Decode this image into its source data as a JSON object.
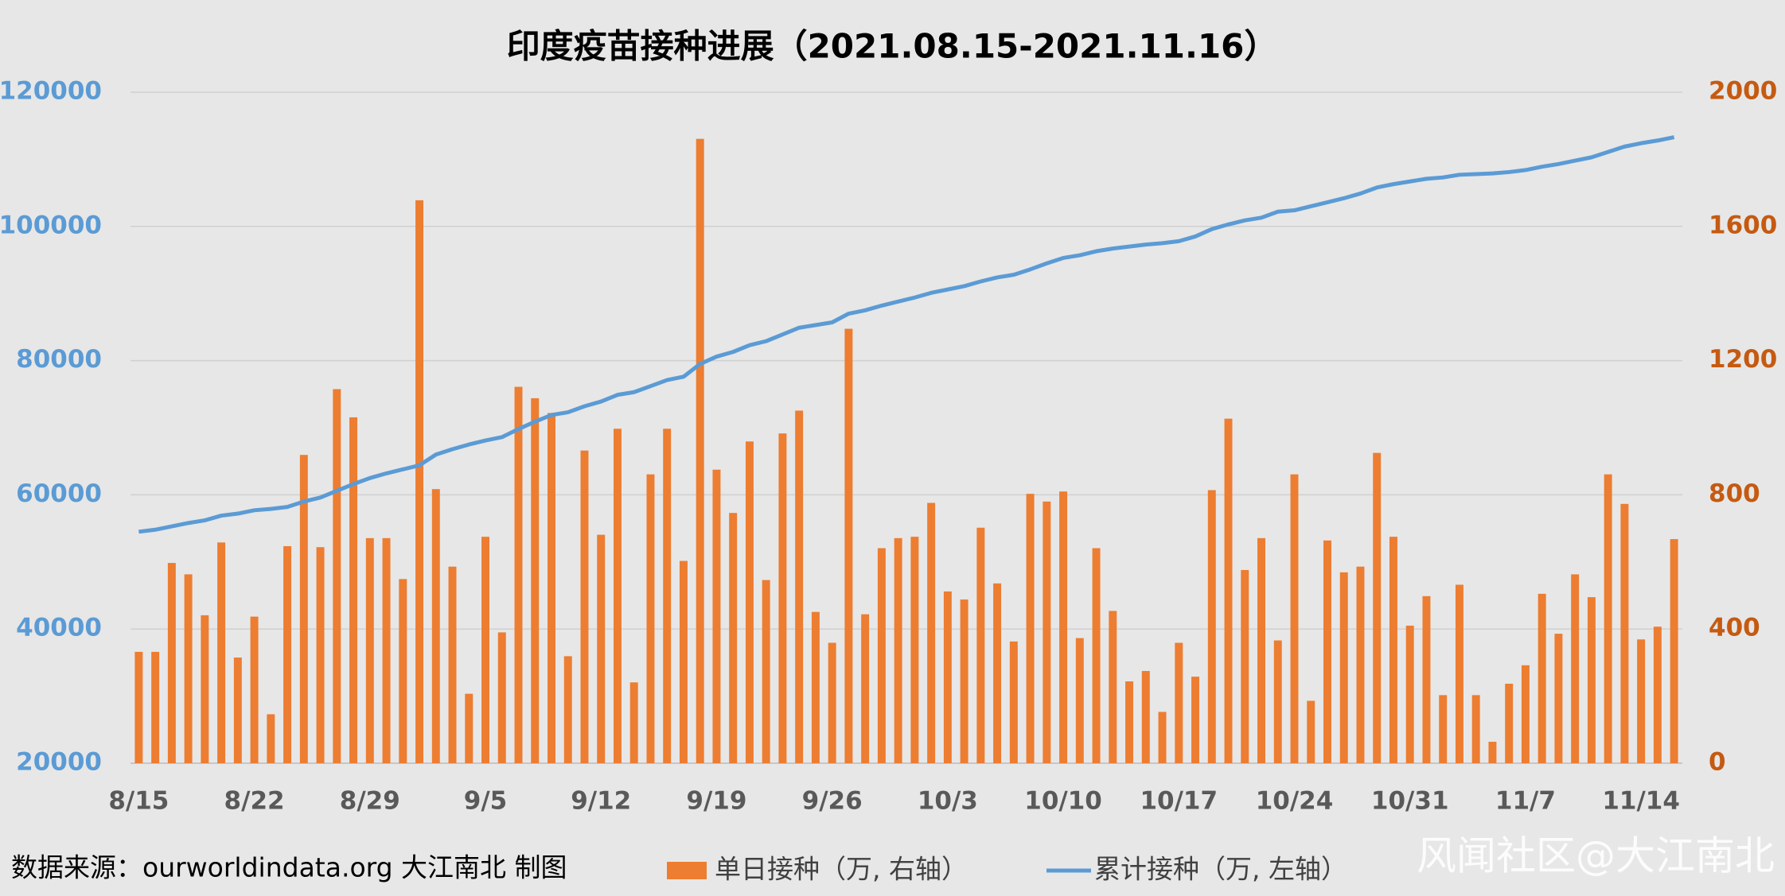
{
  "chart_data": {
    "type": "bar-line",
    "title": "印度疫苗接种进展（2021.08.15-2021.11.16）",
    "source": "数据来源：ourworldindata.org 大江南北 制图",
    "watermark": "风闻社区@大江南北",
    "categories": [
      "8/15",
      null,
      null,
      null,
      null,
      null,
      null,
      "8/22",
      null,
      null,
      null,
      null,
      null,
      null,
      "8/29",
      null,
      null,
      null,
      null,
      null,
      null,
      "9/5",
      null,
      null,
      null,
      null,
      null,
      null,
      "9/12",
      null,
      null,
      null,
      null,
      null,
      null,
      "9/19",
      null,
      null,
      null,
      null,
      null,
      null,
      "9/26",
      null,
      null,
      null,
      null,
      null,
      null,
      "10/3",
      null,
      null,
      null,
      null,
      null,
      null,
      "10/10",
      null,
      null,
      null,
      null,
      null,
      null,
      "10/17",
      null,
      null,
      null,
      null,
      null,
      null,
      "10/24",
      null,
      null,
      null,
      null,
      null,
      null,
      "10/31",
      null,
      null,
      null,
      null,
      null,
      null,
      "11/7",
      null,
      null,
      null,
      null,
      null,
      null,
      "11/14",
      null,
      null
    ],
    "series": [
      {
        "name": "单日接种（万, 右轴）",
        "type": "bar",
        "axis": "y2",
        "color": "#ed7d31",
        "values": [
          332,
          332,
          597,
          563,
          441,
          658,
          315,
          437,
          146,
          647,
          919,
          644,
          1115,
          1031,
          671,
          671,
          549,
          1678,
          817,
          586,
          207,
          675,
          390,
          1122,
          1088,
          1044,
          319,
          932,
          681,
          997,
          241,
          861,
          997,
          603,
          1861,
          875,
          746,
          959,
          546,
          983,
          1051,
          451,
          359,
          1295,
          444,
          641,
          671,
          675,
          776,
          512,
          488,
          702,
          536,
          363,
          803,
          780,
          810,
          373,
          641,
          454,
          244,
          275,
          153,
          359,
          258,
          814,
          1027,
          576,
          671,
          366,
          861,
          186,
          664,
          569,
          586,
          925,
          675,
          410,
          498,
          203,
          532,
          203,
          64,
          237,
          292,
          505,
          386,
          563,
          495,
          861,
          773,
          369,
          407,
          668
        ]
      },
      {
        "name": "累计接种（万, 左轴）",
        "type": "line",
        "color": "#5b9bd5",
        "values": [
          54500,
          54800,
          55300,
          55800,
          56200,
          56900,
          57200,
          57700,
          57900,
          58200,
          59000,
          59600,
          60600,
          61600,
          62500,
          63200,
          63800,
          64400,
          66000,
          66800,
          67500,
          68100,
          68600,
          69800,
          70900,
          71900,
          72300,
          73200,
          73900,
          74900,
          75300,
          76200,
          77100,
          77600,
          79500,
          80600,
          81300,
          82300,
          82900,
          83900,
          84900,
          85300,
          85700,
          87000,
          87500,
          88200,
          88800,
          89400,
          90100,
          90600,
          91100,
          91800,
          92400,
          92800,
          93600,
          94500,
          95300,
          95700,
          96300,
          96700,
          97000,
          97300,
          97500,
          97800,
          98500,
          99600,
          100300,
          100900,
          101300,
          102200,
          102400,
          103000,
          103600,
          104200,
          104900,
          105800,
          106300,
          106700,
          107100,
          107300,
          107700,
          107800,
          107900,
          108100,
          108400,
          108900,
          109300,
          109800,
          110300,
          111100,
          111900,
          112400,
          112800,
          113300
        ]
      }
    ],
    "ylim": [
      20000,
      120000
    ],
    "yticks": [
      20000,
      40000,
      60000,
      80000,
      100000,
      120000
    ],
    "y2lim": [
      0,
      2000
    ],
    "y2ticks": [
      0,
      400,
      800,
      1200,
      1600,
      2000
    ],
    "grid": true
  }
}
